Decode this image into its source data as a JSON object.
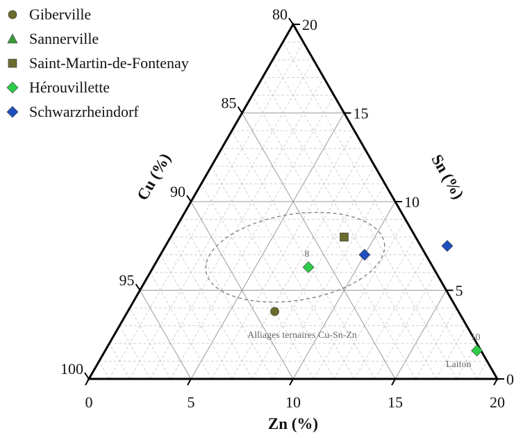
{
  "chart_data": {
    "type": "scatter",
    "subtype": "ternary",
    "axes": {
      "bottom": {
        "label": "Zn (%)",
        "min": 0,
        "max": 20,
        "ticks": [
          0,
          5,
          10,
          15,
          20
        ]
      },
      "left": {
        "label": "Cu (%)",
        "min": 80,
        "max": 100,
        "ticks": [
          80,
          85,
          90,
          95,
          100
        ]
      },
      "right": {
        "label": "Sn (%)",
        "min": 0,
        "max": 20,
        "ticks": [
          0,
          5,
          10,
          15,
          20
        ]
      }
    },
    "grid": true,
    "legend_position": "top-left",
    "series": [
      {
        "name": "Giberville",
        "marker": "circle",
        "color": "#6b6b2e",
        "points": [
          {
            "zn": 7.2,
            "sn": 3.8,
            "cu": 89.0
          }
        ]
      },
      {
        "name": "Sannerville",
        "marker": "triangle",
        "color": "#3a9a3a",
        "points": []
      },
      {
        "name": "Saint-Martin-de-Fontenay",
        "marker": "square",
        "color": "#6b6b2e",
        "points": [
          {
            "zn": 8.5,
            "sn": 8.0,
            "cu": 83.5
          }
        ]
      },
      {
        "name": "Hérouvillette",
        "marker": "diamond",
        "color": "#2ecc4a",
        "points": [
          {
            "zn": 7.6,
            "sn": 6.3,
            "cu": 86.1,
            "label": "8"
          },
          {
            "zn": 18.2,
            "sn": 1.6,
            "cu": 80.2,
            "label": "10"
          }
        ]
      },
      {
        "name": "Schwarzrheindorf",
        "marker": "diamond",
        "color": "#1f4fbf",
        "points": [
          {
            "zn": 10.0,
            "sn": 7.0,
            "cu": 83.0
          },
          {
            "zn": 13.8,
            "sn": 7.5,
            "cu": 78.7
          }
        ]
      }
    ],
    "annotations": [
      {
        "text": "Alliages ternaires Cu-Sn-Zn"
      },
      {
        "text": "Laiton"
      }
    ]
  }
}
